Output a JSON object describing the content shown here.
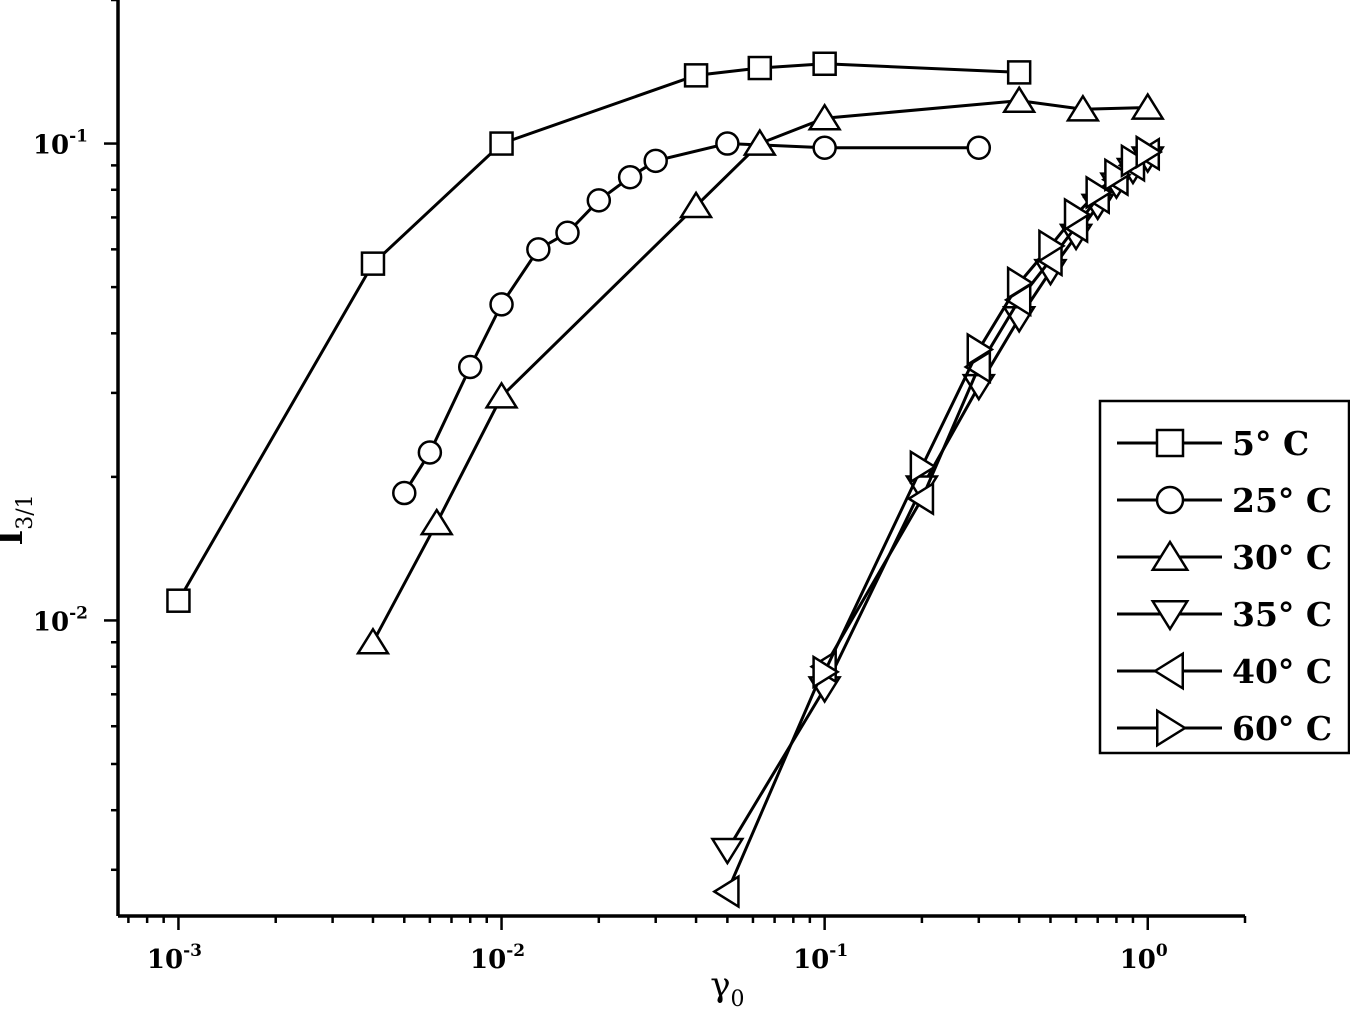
{
  "chart_data": {
    "type": "scatter",
    "xlabel": "γ",
    "xlabel_subscript": "0",
    "ylabel": "I",
    "ylabel_subscript": "3/1",
    "x_scale": "log",
    "y_scale": "log",
    "xlim": [
      0.00065,
      2.0
    ],
    "ylim": [
      0.0024,
      0.2
    ],
    "x_ticks": [
      {
        "value": 0.001,
        "base": "10",
        "exp": "-3"
      },
      {
        "value": 0.01,
        "base": "10",
        "exp": "-2"
      },
      {
        "value": 0.1,
        "base": "10",
        "exp": "-1"
      },
      {
        "value": 1,
        "base": "10",
        "exp": "0"
      }
    ],
    "y_ticks": [
      {
        "value": 0.01,
        "base": "10",
        "exp": "-2"
      },
      {
        "value": 0.1,
        "base": "10",
        "exp": "-1"
      }
    ],
    "legend_position": "right",
    "series": [
      {
        "name": "5° C",
        "marker": "square",
        "x": [
          0.001,
          0.004,
          0.01,
          0.04,
          0.063,
          0.1,
          0.4
        ],
        "y": [
          0.011,
          0.056,
          0.1,
          0.139,
          0.144,
          0.147,
          0.141
        ]
      },
      {
        "name": "25° C",
        "marker": "circle",
        "x": [
          0.005,
          0.006,
          0.008,
          0.01,
          0.013,
          0.016,
          0.02,
          0.025,
          0.03,
          0.05,
          0.1,
          0.3
        ],
        "y": [
          0.0185,
          0.0225,
          0.034,
          0.046,
          0.06,
          0.065,
          0.076,
          0.085,
          0.092,
          0.1,
          0.098,
          0.098
        ]
      },
      {
        "name": "30° C",
        "marker": "triangle-up",
        "x": [
          0.004,
          0.0063,
          0.01,
          0.04,
          0.063,
          0.1,
          0.4,
          0.63,
          1.0
        ],
        "y": [
          0.009,
          0.016,
          0.0295,
          0.074,
          0.1,
          0.113,
          0.123,
          0.118,
          0.119
        ]
      },
      {
        "name": "35° C",
        "marker": "triangle-down",
        "x": [
          0.05,
          0.1,
          0.2,
          0.3,
          0.4,
          0.5,
          0.6,
          0.7,
          0.8,
          0.9,
          1.0
        ],
        "y": [
          0.0033,
          0.0072,
          0.019,
          0.031,
          0.043,
          0.054,
          0.064,
          0.074,
          0.082,
          0.088,
          0.093
        ]
      },
      {
        "name": "40° C",
        "marker": "triangle-left",
        "x": [
          0.05,
          0.1,
          0.2,
          0.3,
          0.4,
          0.5,
          0.6,
          0.7,
          0.8,
          0.9,
          1.0
        ],
        "y": [
          0.0027,
          0.008,
          0.018,
          0.034,
          0.047,
          0.057,
          0.067,
          0.077,
          0.084,
          0.09,
          0.095
        ]
      },
      {
        "name": "60° C",
        "marker": "triangle-right",
        "x": [
          0.1,
          0.2,
          0.3,
          0.4,
          0.5,
          0.6,
          0.7,
          0.8,
          0.9,
          1.0
        ],
        "y": [
          0.0078,
          0.021,
          0.037,
          0.051,
          0.061,
          0.071,
          0.079,
          0.086,
          0.092,
          0.096
        ]
      }
    ]
  }
}
